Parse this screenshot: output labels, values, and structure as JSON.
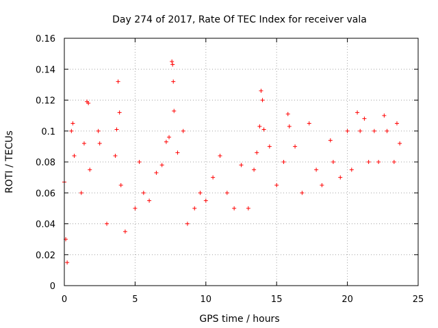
{
  "chart_data": {
    "type": "scatter",
    "title": "Day 274 of 2017, Rate Of TEC Index for receiver vala",
    "xlabel": "GPS time / hours",
    "ylabel": "ROTI / TECUs",
    "xlim": [
      0,
      25
    ],
    "ylim": [
      0,
      0.16
    ],
    "x_ticks": [
      0,
      5,
      10,
      15,
      20,
      25
    ],
    "y_ticks": [
      0,
      0.02,
      0.04,
      0.06,
      0.08,
      0.1,
      0.12,
      0.14,
      0.16
    ],
    "x_tick_labels": [
      "0",
      "5",
      "10",
      "15",
      "20",
      "25"
    ],
    "y_tick_labels": [
      "0",
      "0.02",
      "0.04",
      "0.06",
      "0.08",
      "0.1",
      "0.12",
      "0.14",
      "0.16"
    ],
    "grid": true,
    "marker": "+",
    "color": "#ff0000",
    "series": [
      {
        "name": "ROTI",
        "points": [
          [
            0.0,
            0.067
          ],
          [
            0.1,
            0.03
          ],
          [
            0.2,
            0.015
          ],
          [
            0.5,
            0.1
          ],
          [
            0.6,
            0.105
          ],
          [
            0.7,
            0.084
          ],
          [
            1.2,
            0.06
          ],
          [
            1.4,
            0.092
          ],
          [
            1.6,
            0.119
          ],
          [
            1.7,
            0.118
          ],
          [
            1.8,
            0.075
          ],
          [
            2.4,
            0.1
          ],
          [
            2.5,
            0.092
          ],
          [
            3.0,
            0.04
          ],
          [
            3.6,
            0.084
          ],
          [
            3.7,
            0.101
          ],
          [
            3.8,
            0.132
          ],
          [
            3.9,
            0.112
          ],
          [
            4.0,
            0.065
          ],
          [
            4.3,
            0.035
          ],
          [
            5.0,
            0.05
          ],
          [
            5.3,
            0.08
          ],
          [
            5.6,
            0.06
          ],
          [
            6.0,
            0.055
          ],
          [
            6.5,
            0.073
          ],
          [
            6.9,
            0.078
          ],
          [
            7.2,
            0.093
          ],
          [
            7.4,
            0.096
          ],
          [
            7.6,
            0.145
          ],
          [
            7.65,
            0.143
          ],
          [
            7.7,
            0.132
          ],
          [
            7.75,
            0.113
          ],
          [
            8.0,
            0.086
          ],
          [
            8.4,
            0.1
          ],
          [
            8.7,
            0.04
          ],
          [
            9.2,
            0.05
          ],
          [
            9.6,
            0.06
          ],
          [
            10.0,
            0.055
          ],
          [
            10.5,
            0.07
          ],
          [
            11.0,
            0.084
          ],
          [
            11.5,
            0.06
          ],
          [
            12.0,
            0.05
          ],
          [
            12.5,
            0.078
          ],
          [
            13.0,
            0.05
          ],
          [
            13.4,
            0.075
          ],
          [
            13.6,
            0.086
          ],
          [
            13.8,
            0.103
          ],
          [
            13.9,
            0.126
          ],
          [
            14.0,
            0.12
          ],
          [
            14.1,
            0.101
          ],
          [
            14.5,
            0.09
          ],
          [
            15.0,
            0.065
          ],
          [
            15.5,
            0.08
          ],
          [
            15.8,
            0.111
          ],
          [
            15.9,
            0.103
          ],
          [
            16.3,
            0.09
          ],
          [
            16.8,
            0.06
          ],
          [
            17.3,
            0.105
          ],
          [
            17.8,
            0.075
          ],
          [
            18.2,
            0.065
          ],
          [
            18.8,
            0.094
          ],
          [
            19.0,
            0.08
          ],
          [
            19.5,
            0.07
          ],
          [
            20.0,
            0.1
          ],
          [
            20.3,
            0.075
          ],
          [
            20.7,
            0.112
          ],
          [
            20.9,
            0.1
          ],
          [
            21.2,
            0.108
          ],
          [
            21.5,
            0.08
          ],
          [
            21.9,
            0.1
          ],
          [
            22.2,
            0.08
          ],
          [
            22.6,
            0.11
          ],
          [
            22.8,
            0.1
          ],
          [
            23.3,
            0.08
          ],
          [
            23.5,
            0.105
          ],
          [
            23.7,
            0.092
          ]
        ]
      }
    ]
  }
}
